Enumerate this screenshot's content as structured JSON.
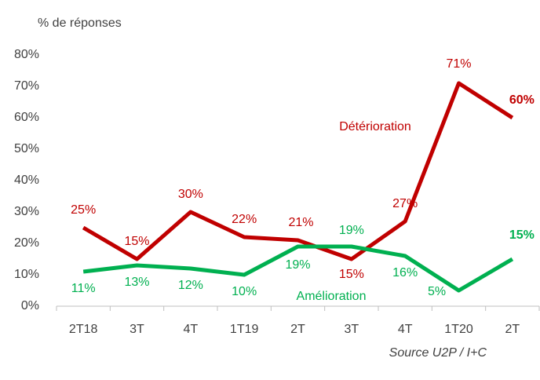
{
  "chart_data": {
    "type": "line",
    "ylabel": "% de réponses",
    "note": "Source U2P / I+C",
    "categories": [
      "2T18",
      "3T",
      "4T",
      "1T19",
      "2T",
      "3T",
      "4T",
      "1T20",
      "2T"
    ],
    "series": [
      {
        "name": "Détérioration",
        "color": "#c00000",
        "values": [
          25,
          15,
          30,
          22,
          21,
          15,
          27,
          71,
          60
        ],
        "value_labels": [
          "25%",
          "15%",
          "30%",
          "22%",
          "21%",
          "15%",
          "27%",
          "71%",
          "60%"
        ]
      },
      {
        "name": "Amélioration",
        "color": "#00b050",
        "values": [
          11,
          13,
          12,
          10,
          19,
          19,
          16,
          5,
          15
        ],
        "value_labels": [
          "11%",
          "13%",
          "12%",
          "10%",
          "19%",
          "19%",
          "16%",
          "5%",
          "15%"
        ]
      }
    ],
    "ylim": [
      0,
      80
    ],
    "yticks": [
      {
        "value": 0,
        "label": "0%"
      },
      {
        "value": 10,
        "label": "10%"
      },
      {
        "value": 20,
        "label": "20%"
      },
      {
        "value": 30,
        "label": "30%"
      },
      {
        "value": 40,
        "label": "40%"
      },
      {
        "value": 50,
        "label": "50%"
      },
      {
        "value": 60,
        "label": "60%"
      },
      {
        "value": 70,
        "label": "70%"
      },
      {
        "value": 80,
        "label": "80%"
      }
    ],
    "grid": false
  }
}
